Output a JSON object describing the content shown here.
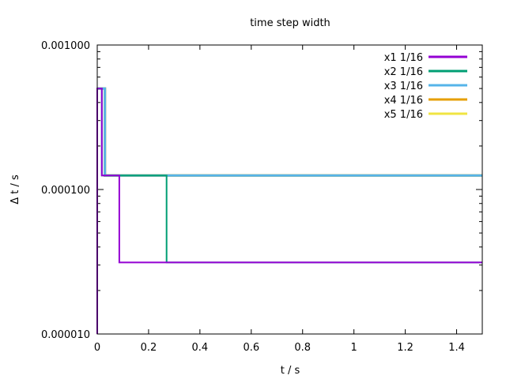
{
  "chart_data": {
    "type": "line",
    "title": "time step width",
    "xlabel": "t / s",
    "ylabel": "Δ t / s",
    "xlim": [
      0,
      1.5
    ],
    "ylim": [
      1e-05,
      0.001
    ],
    "yscale": "log",
    "grid": false,
    "legend_position": "top-right",
    "x_ticks": [
      "0",
      "0.2",
      "0.4",
      "0.6",
      "0.8",
      "1",
      "1.2",
      "1.4"
    ],
    "x_tick_values": [
      0,
      0.2,
      0.4,
      0.6,
      0.8,
      1,
      1.2,
      1.4
    ],
    "y_ticks": [
      "0.000010",
      "0.000100",
      "0.001000"
    ],
    "y_tick_values": [
      1e-05,
      0.0001,
      0.001
    ],
    "series": [
      {
        "name": "x1 1/16",
        "color": "#9400d3",
        "points": [
          [
            0,
            1e-05
          ],
          [
            0,
            0.0005
          ],
          [
            0.018,
            0.0005
          ],
          [
            0.018,
            0.000125
          ],
          [
            0.086,
            0.000125
          ],
          [
            0.086,
            3.125e-05
          ],
          [
            1.5,
            3.125e-05
          ]
        ]
      },
      {
        "name": "x2 1/16",
        "color": "#009e73",
        "points": [
          [
            0,
            0.0005
          ],
          [
            0.018,
            0.0005
          ],
          [
            0.018,
            0.000125
          ],
          [
            0.27,
            0.000125
          ],
          [
            0.27,
            3.125e-05
          ],
          [
            1.5,
            3.125e-05
          ]
        ]
      },
      {
        "name": "x3 1/16",
        "color": "#56b4e9",
        "points": [
          [
            0,
            0.0005
          ],
          [
            0.03,
            0.0005
          ],
          [
            0.03,
            0.000125
          ],
          [
            1.5,
            0.000125
          ]
        ]
      },
      {
        "name": "x4 1/16",
        "color": "#e69f00",
        "points": [
          [
            0,
            0.0005
          ],
          [
            0.03,
            0.0005
          ],
          [
            0.03,
            0.000125
          ],
          [
            1.5,
            0.000125
          ]
        ]
      },
      {
        "name": "x5 1/16",
        "color": "#f0e442",
        "points": [
          [
            0,
            0.0005
          ],
          [
            0.03,
            0.0005
          ],
          [
            0.03,
            0.000125
          ],
          [
            1.5,
            0.000125
          ]
        ]
      }
    ]
  }
}
